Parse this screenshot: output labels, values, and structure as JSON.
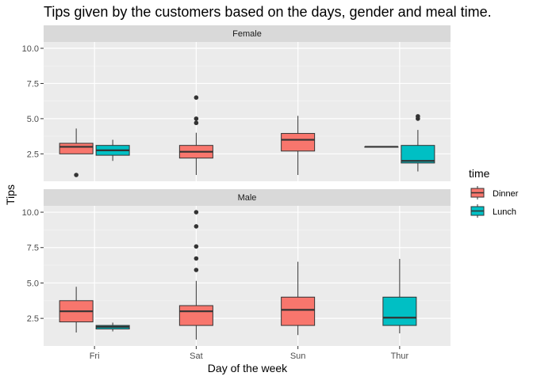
{
  "chart_data": {
    "type": "boxplot",
    "title": "Tips given by the customers based on the days, gender and meal time.",
    "xlabel": "Day of the week",
    "ylabel": "Tips",
    "categories": [
      "Fri",
      "Sat",
      "Sun",
      "Thur"
    ],
    "ylim": [
      1.0,
      10.0
    ],
    "yticks": [
      2.5,
      5.0,
      7.5,
      10.0
    ],
    "ytick_labels": [
      "2.5",
      "5.0",
      "7.5",
      "10.0"
    ],
    "grid": true,
    "legend": {
      "title": "time",
      "position": "right",
      "entries": [
        {
          "name": "Dinner",
          "color": "#F8766D"
        },
        {
          "name": "Lunch",
          "color": "#00BFC4"
        }
      ]
    },
    "panels": [
      {
        "label": "Female",
        "boxes": [
          {
            "day": "Fri",
            "time": "Dinner",
            "min": 2.5,
            "q1": 2.5,
            "median": 3.0,
            "q3": 3.25,
            "max": 4.3,
            "outliers": [
              1.0
            ]
          },
          {
            "day": "Fri",
            "time": "Lunch",
            "min": 2.0,
            "q1": 2.4,
            "median": 2.75,
            "q3": 3.1,
            "max": 3.5,
            "outliers": []
          },
          {
            "day": "Sat",
            "time": "Dinner",
            "min": 1.0,
            "q1": 2.2,
            "median": 2.65,
            "q3": 3.1,
            "max": 4.0,
            "outliers": [
              4.7,
              5.0,
              6.5
            ]
          },
          {
            "day": "Sun",
            "time": "Dinner",
            "min": 1.0,
            "q1": 2.7,
            "median": 3.5,
            "q3": 3.95,
            "max": 5.2,
            "outliers": []
          },
          {
            "day": "Thur",
            "time": "Dinner",
            "min": 3.0,
            "q1": 3.0,
            "median": 3.0,
            "q3": 3.0,
            "max": 3.0,
            "outliers": []
          },
          {
            "day": "Thur",
            "time": "Lunch",
            "min": 1.25,
            "q1": 1.85,
            "median": 2.0,
            "q3": 3.1,
            "max": 4.2,
            "outliers": [
              5.0,
              5.17
            ]
          }
        ]
      },
      {
        "label": "Male",
        "boxes": [
          {
            "day": "Fri",
            "time": "Dinner",
            "min": 1.5,
            "q1": 2.25,
            "median": 3.0,
            "q3": 3.75,
            "max": 4.73,
            "outliers": []
          },
          {
            "day": "Fri",
            "time": "Lunch",
            "min": 1.58,
            "q1": 1.75,
            "median": 1.9,
            "q3": 2.0,
            "max": 2.2,
            "outliers": []
          },
          {
            "day": "Sat",
            "time": "Dinner",
            "min": 1.0,
            "q1": 2.0,
            "median": 3.0,
            "q3": 3.4,
            "max": 5.15,
            "outliers": [
              5.92,
              6.73,
              7.58,
              9.0,
              10.0
            ]
          },
          {
            "day": "Sun",
            "time": "Dinner",
            "min": 1.32,
            "q1": 2.0,
            "median": 3.1,
            "q3": 4.0,
            "max": 6.5,
            "outliers": []
          },
          {
            "day": "Thur",
            "time": "Lunch",
            "min": 1.44,
            "q1": 2.0,
            "median": 2.55,
            "q3": 4.0,
            "max": 6.7,
            "outliers": []
          }
        ]
      }
    ]
  }
}
